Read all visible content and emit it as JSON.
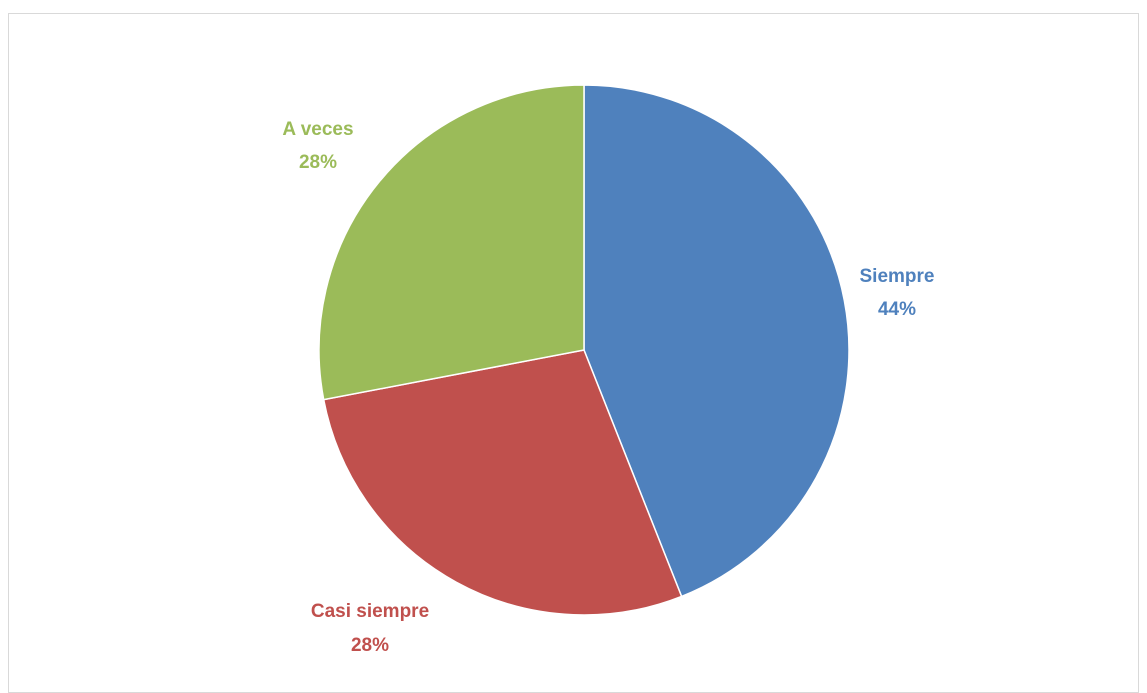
{
  "chart_data": {
    "type": "pie",
    "title": "",
    "slices": [
      {
        "label": "Siempre",
        "value": 44,
        "display": "44%",
        "color": "#4F81BD"
      },
      {
        "label": "Casi siempre",
        "value": 28,
        "display": "28%",
        "color": "#C0504D"
      },
      {
        "label": "A veces",
        "value": 28,
        "display": "28%",
        "color": "#9BBB59"
      }
    ],
    "start_angle_deg": 0,
    "direction": "clockwise",
    "legend": "none",
    "labels": "outside-slice-name-and-percent"
  }
}
